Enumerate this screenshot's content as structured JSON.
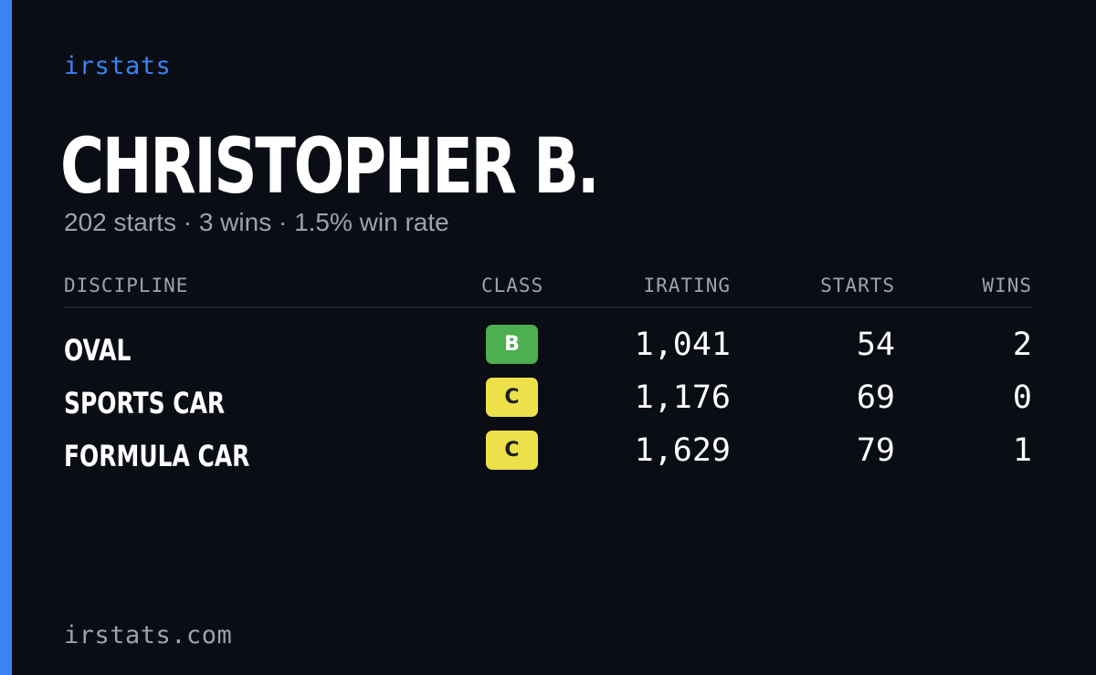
{
  "brand": "irstats",
  "colors": {
    "background": "#0a0d14",
    "accent": "#3b82f6",
    "muted_text": "#9aa3b2",
    "class_b": "#4caf50",
    "class_c": "#ede04b"
  },
  "player": {
    "name": "CHRISTOPHER B.",
    "summary": "202 starts · 3 wins · 1.5% win rate"
  },
  "table": {
    "headers": {
      "discipline": "DISCIPLINE",
      "class": "CLASS",
      "irating": "IRATING",
      "starts": "STARTS",
      "wins": "WINS"
    },
    "rows": [
      {
        "discipline": "OVAL",
        "class": "B",
        "irating": "1,041",
        "starts": "54",
        "wins": "2"
      },
      {
        "discipline": "SPORTS CAR",
        "class": "C",
        "irating": "1,176",
        "starts": "69",
        "wins": "0"
      },
      {
        "discipline": "FORMULA CAR",
        "class": "C",
        "irating": "1,629",
        "starts": "79",
        "wins": "1"
      }
    ]
  },
  "footer": {
    "domain": "irstats.com"
  }
}
